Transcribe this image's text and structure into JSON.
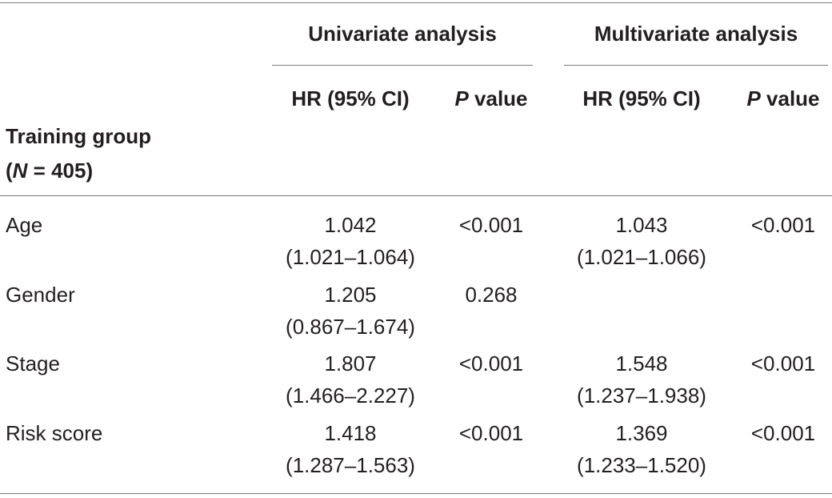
{
  "table": {
    "group_headers": {
      "univariate": "Univariate analysis",
      "multivariate": "Multivariate analysis"
    },
    "column_headers": {
      "uni_hr": "HR (95% CI)",
      "uni_p_italic": "P",
      "uni_p_rest": " value",
      "multi_hr": "HR (95% CI)",
      "multi_p_italic": "P",
      "multi_p_rest": " value"
    },
    "row_group_label": {
      "line1": "Training group",
      "line2_open": "(",
      "line2_italic": "N",
      "line2_rest": " = 405)"
    },
    "rows": [
      {
        "label": "Age",
        "uni_hr": "1.042",
        "uni_ci": "(1.021–1.064)",
        "uni_p": "<0.001",
        "multi_hr": "1.043",
        "multi_ci": "(1.021–1.066)",
        "multi_p": "<0.001"
      },
      {
        "label": "Gender",
        "uni_hr": "1.205",
        "uni_ci": "(0.867–1.674)",
        "uni_p": "0.268",
        "multi_hr": "",
        "multi_ci": "",
        "multi_p": ""
      },
      {
        "label": "Stage",
        "uni_hr": "1.807",
        "uni_ci": "(1.466–2.227)",
        "uni_p": "<0.001",
        "multi_hr": "1.548",
        "multi_ci": "(1.237–1.938)",
        "multi_p": "<0.001"
      },
      {
        "label": "Risk score",
        "uni_hr": "1.418",
        "uni_ci": "(1.287–1.563)",
        "uni_p": "<0.001",
        "multi_hr": "1.369",
        "multi_ci": "(1.233–1.520)",
        "multi_p": "<0.001"
      }
    ]
  }
}
